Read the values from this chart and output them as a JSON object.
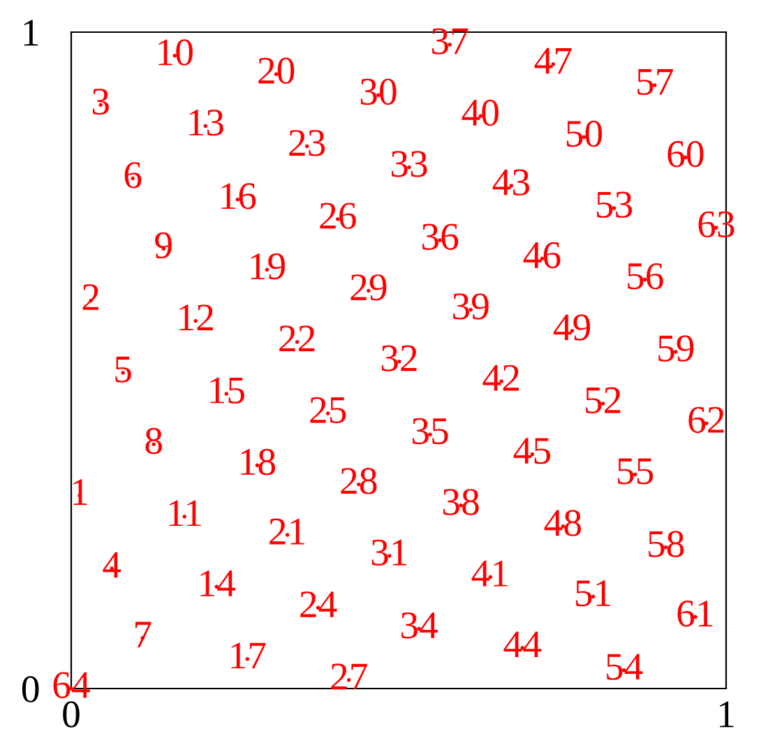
{
  "chart_data": {
    "type": "scatter",
    "xlim": [
      0,
      1
    ],
    "ylim": [
      0,
      1
    ],
    "xticks": [
      0,
      1
    ],
    "yticks": [
      0,
      1
    ],
    "marker": "circle",
    "series": [
      {
        "color": "#ff0000",
        "x": [
          0.013,
          0.03,
          0.045,
          0.062,
          0.079,
          0.094,
          0.109,
          0.126,
          0.141,
          0.158,
          0.173,
          0.19,
          0.205,
          0.222,
          0.237,
          0.254,
          0.269,
          0.284,
          0.299,
          0.313,
          0.33,
          0.345,
          0.36,
          0.377,
          0.392,
          0.407,
          0.424,
          0.439,
          0.454,
          0.469,
          0.486,
          0.501,
          0.516,
          0.531,
          0.548,
          0.563,
          0.578,
          0.595,
          0.61,
          0.625,
          0.64,
          0.657,
          0.672,
          0.689,
          0.704,
          0.719,
          0.736,
          0.751,
          0.765,
          0.783,
          0.797,
          0.812,
          0.829,
          0.844,
          0.861,
          0.876,
          0.891,
          0.908,
          0.923,
          0.938,
          0.953,
          0.97,
          0.985,
          0.0
        ],
        "values": [
          0.294,
          0.591,
          0.889,
          0.183,
          0.481,
          0.777,
          0.077,
          0.372,
          0.67,
          0.964,
          0.262,
          0.56,
          0.857,
          0.155,
          0.449,
          0.745,
          0.045,
          0.34,
          0.638,
          0.936,
          0.234,
          0.528,
          0.826,
          0.123,
          0.419,
          0.715,
          0.013,
          0.311,
          0.606,
          0.904,
          0.202,
          0.498,
          0.794,
          0.091,
          0.387,
          0.683,
          0.981,
          0.279,
          0.577,
          0.872,
          0.17,
          0.468,
          0.766,
          0.062,
          0.357,
          0.655,
          0.951,
          0.247,
          0.545,
          0.84,
          0.14,
          0.434,
          0.732,
          0.028,
          0.326,
          0.623,
          0.919,
          0.215,
          0.513,
          0.809,
          0.109,
          0.404,
          0.702,
          0.0
        ]
      }
    ],
    "annotations": [
      {
        "text": "1",
        "x": 0.013,
        "y": 0.294
      },
      {
        "text": "2",
        "x": 0.03,
        "y": 0.591
      },
      {
        "text": "3",
        "x": 0.045,
        "y": 0.889
      },
      {
        "text": "4",
        "x": 0.062,
        "y": 0.183
      },
      {
        "text": "5",
        "x": 0.079,
        "y": 0.481
      },
      {
        "text": "6",
        "x": 0.094,
        "y": 0.777
      },
      {
        "text": "7",
        "x": 0.109,
        "y": 0.077
      },
      {
        "text": "8",
        "x": 0.126,
        "y": 0.372
      },
      {
        "text": "9",
        "x": 0.141,
        "y": 0.67
      },
      {
        "text": "10",
        "x": 0.158,
        "y": 0.964
      },
      {
        "text": "11",
        "x": 0.173,
        "y": 0.262
      },
      {
        "text": "12",
        "x": 0.19,
        "y": 0.56
      },
      {
        "text": "13",
        "x": 0.205,
        "y": 0.857
      },
      {
        "text": "14",
        "x": 0.222,
        "y": 0.155
      },
      {
        "text": "15",
        "x": 0.237,
        "y": 0.449
      },
      {
        "text": "16",
        "x": 0.254,
        "y": 0.745
      },
      {
        "text": "17",
        "x": 0.269,
        "y": 0.045
      },
      {
        "text": "18",
        "x": 0.284,
        "y": 0.34
      },
      {
        "text": "19",
        "x": 0.299,
        "y": 0.638
      },
      {
        "text": "20",
        "x": 0.313,
        "y": 0.936
      },
      {
        "text": "21",
        "x": 0.33,
        "y": 0.234
      },
      {
        "text": "22",
        "x": 0.345,
        "y": 0.528
      },
      {
        "text": "23",
        "x": 0.36,
        "y": 0.826
      },
      {
        "text": "24",
        "x": 0.377,
        "y": 0.123
      },
      {
        "text": "25",
        "x": 0.392,
        "y": 0.419
      },
      {
        "text": "26",
        "x": 0.407,
        "y": 0.715
      },
      {
        "text": "27",
        "x": 0.424,
        "y": 0.013
      },
      {
        "text": "28",
        "x": 0.439,
        "y": 0.311
      },
      {
        "text": "29",
        "x": 0.454,
        "y": 0.606
      },
      {
        "text": "30",
        "x": 0.469,
        "y": 0.904
      },
      {
        "text": "31",
        "x": 0.486,
        "y": 0.202
      },
      {
        "text": "32",
        "x": 0.501,
        "y": 0.498
      },
      {
        "text": "33",
        "x": 0.516,
        "y": 0.794
      },
      {
        "text": "34",
        "x": 0.531,
        "y": 0.091
      },
      {
        "text": "35",
        "x": 0.548,
        "y": 0.387
      },
      {
        "text": "36",
        "x": 0.563,
        "y": 0.683
      },
      {
        "text": "37",
        "x": 0.578,
        "y": 0.981
      },
      {
        "text": "38",
        "x": 0.595,
        "y": 0.279
      },
      {
        "text": "39",
        "x": 0.61,
        "y": 0.577
      },
      {
        "text": "40",
        "x": 0.625,
        "y": 0.872
      },
      {
        "text": "41",
        "x": 0.64,
        "y": 0.17
      },
      {
        "text": "42",
        "x": 0.657,
        "y": 0.468
      },
      {
        "text": "43",
        "x": 0.672,
        "y": 0.766
      },
      {
        "text": "44",
        "x": 0.689,
        "y": 0.062
      },
      {
        "text": "45",
        "x": 0.704,
        "y": 0.357
      },
      {
        "text": "46",
        "x": 0.719,
        "y": 0.655
      },
      {
        "text": "47",
        "x": 0.736,
        "y": 0.951
      },
      {
        "text": "48",
        "x": 0.751,
        "y": 0.247
      },
      {
        "text": "49",
        "x": 0.765,
        "y": 0.545
      },
      {
        "text": "50",
        "x": 0.783,
        "y": 0.84
      },
      {
        "text": "51",
        "x": 0.797,
        "y": 0.14
      },
      {
        "text": "52",
        "x": 0.812,
        "y": 0.434
      },
      {
        "text": "53",
        "x": 0.829,
        "y": 0.732
      },
      {
        "text": "54",
        "x": 0.844,
        "y": 0.028
      },
      {
        "text": "55",
        "x": 0.861,
        "y": 0.326
      },
      {
        "text": "56",
        "x": 0.876,
        "y": 0.623
      },
      {
        "text": "57",
        "x": 0.891,
        "y": 0.919
      },
      {
        "text": "58",
        "x": 0.908,
        "y": 0.215
      },
      {
        "text": "59",
        "x": 0.923,
        "y": 0.513
      },
      {
        "text": "60",
        "x": 0.938,
        "y": 0.809
      },
      {
        "text": "61",
        "x": 0.953,
        "y": 0.109
      },
      {
        "text": "62",
        "x": 0.97,
        "y": 0.404
      },
      {
        "text": "63",
        "x": 0.985,
        "y": 0.702
      },
      {
        "text": "64",
        "x": 0.0,
        "y": 0.0
      }
    ]
  }
}
